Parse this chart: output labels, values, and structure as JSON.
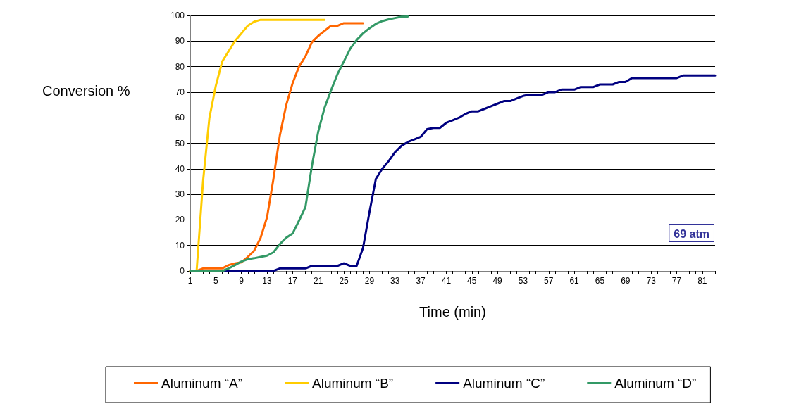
{
  "chart_data": {
    "type": "line",
    "xlabel": "Time (min)",
    "ylabel": "Conversion %",
    "categories": [
      "1",
      null,
      null,
      null,
      "5",
      null,
      null,
      null,
      "9",
      null,
      null,
      null,
      "13",
      null,
      null,
      null,
      "17",
      null,
      null,
      null,
      "21",
      null,
      null,
      null,
      "25",
      null,
      null,
      null,
      "29",
      null,
      null,
      null,
      "33",
      null,
      null,
      null,
      "37",
      null,
      null,
      null,
      "41",
      null,
      null,
      null,
      "45",
      null,
      null,
      null,
      "49",
      null,
      null,
      null,
      "53",
      null,
      null,
      null,
      "57",
      null,
      null,
      null,
      "61",
      null,
      null,
      null,
      "65",
      null,
      null,
      null,
      "69",
      null,
      null,
      null,
      "73",
      null,
      null,
      null,
      "77",
      null,
      null,
      null,
      "81",
      null,
      null
    ],
    "series": [
      {
        "name": "Aluminum “A”",
        "color": "#ff6600",
        "values": [
          0,
          0,
          1,
          1,
          1,
          1,
          2.3,
          3,
          3.4,
          5.5,
          8,
          13,
          21,
          36,
          53,
          65,
          73.5,
          80,
          84,
          89.5,
          92,
          94,
          96,
          96,
          97,
          97,
          97,
          97,
          null,
          null,
          null,
          null,
          null,
          null,
          null,
          null,
          null,
          null,
          null,
          null,
          null,
          null,
          null,
          null,
          null,
          null,
          null,
          null,
          null,
          null,
          null,
          null,
          null,
          null,
          null,
          null,
          null,
          null,
          null,
          null,
          null,
          null,
          null,
          null,
          null,
          null,
          null,
          null,
          null,
          null,
          null,
          null,
          null,
          null,
          null,
          null,
          null,
          null,
          null,
          null,
          null,
          null,
          null
        ]
      },
      {
        "name": "Aluminum “B”",
        "color": "#ffcc00",
        "values": [
          0,
          0,
          35,
          60,
          72.5,
          82,
          86,
          90,
          93,
          96,
          97.6,
          98.3,
          98.3,
          98.3,
          98.3,
          98.3,
          98.3,
          98.3,
          98.3,
          98.3,
          98.3,
          98.3,
          null,
          null,
          null,
          null,
          null,
          null,
          null,
          null,
          null,
          null,
          null,
          null,
          null,
          null,
          null,
          null,
          null,
          null,
          null,
          null,
          null,
          null,
          null,
          null,
          null,
          null,
          null,
          null,
          null,
          null,
          null,
          null,
          null,
          null,
          null,
          null,
          null,
          null,
          null,
          null,
          null,
          null,
          null,
          null,
          null,
          null,
          null,
          null,
          null,
          null,
          null,
          null,
          null,
          null,
          null,
          null,
          null,
          null,
          null,
          null,
          null
        ]
      },
      {
        "name": "Aluminum “C”",
        "color": "#000080",
        "values": [
          null,
          null,
          null,
          null,
          0,
          0,
          0,
          0,
          0,
          0,
          0,
          0,
          0,
          0,
          1,
          1,
          1,
          1,
          1,
          2,
          2,
          2,
          2,
          2,
          3,
          2,
          2,
          9,
          23,
          36,
          40,
          43,
          46.5,
          49,
          50.5,
          51.5,
          52.5,
          55.5,
          56,
          56,
          58,
          59,
          60,
          61.5,
          62.5,
          62.5,
          63.5,
          64.5,
          65.5,
          66.5,
          66.5,
          67.5,
          68.5,
          69,
          69,
          69,
          70,
          70,
          71,
          71,
          71,
          72,
          72,
          72,
          73,
          73,
          73,
          74,
          74,
          75.5,
          75.5,
          75.5,
          75.5,
          75.5,
          75.5,
          75.5,
          75.5,
          76.5,
          76.5,
          76.5,
          76.5,
          76.5,
          76.5
        ]
      },
      {
        "name": "Aluminum “D”",
        "color": "#339966",
        "values": [
          0,
          0,
          0,
          0,
          0,
          0,
          1,
          2.3,
          3.7,
          4.6,
          5,
          5.5,
          6,
          7.3,
          10.5,
          13,
          14.7,
          19.7,
          25,
          41,
          54.6,
          64,
          70.7,
          77,
          82,
          87,
          90.4,
          93,
          95,
          96.7,
          97.8,
          98.5,
          99,
          99.5,
          99.6,
          null,
          null,
          null,
          null,
          null,
          null,
          null,
          null,
          null,
          null,
          null,
          null,
          null,
          null,
          null,
          null,
          null,
          null,
          null,
          null,
          null,
          null,
          null,
          null,
          null,
          null,
          null,
          null,
          null,
          null,
          null,
          null,
          null,
          null,
          null,
          null,
          null,
          null,
          null,
          null,
          null,
          null,
          null,
          null,
          null,
          null,
          null,
          null
        ]
      }
    ],
    "ylim": [
      0,
      100
    ],
    "yticks": [
      0,
      10,
      20,
      30,
      40,
      50,
      60,
      70,
      80,
      90,
      100
    ],
    "grid": "y",
    "legend": "bottom",
    "marker": "none",
    "line_style": "solid",
    "annotations": [
      "69 atm"
    ]
  }
}
